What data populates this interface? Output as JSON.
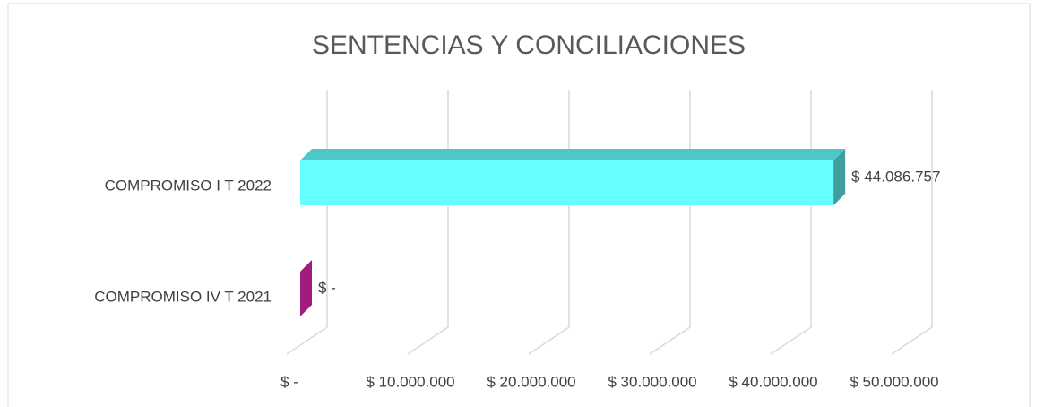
{
  "chart_data": {
    "type": "bar3d_horizontal",
    "title": "SENTENCIAS Y CONCILIACIONES",
    "categories": [
      "COMPROMISO IV T 2021",
      "COMPROMISO I T 2022"
    ],
    "values": [
      0,
      44086757
    ],
    "value_labels": [
      "$ -",
      "$ 44.086.757"
    ],
    "colors": [
      "#a01c7d",
      "#66ffff"
    ],
    "xlim": [
      0,
      50000000
    ],
    "xticks": [
      {
        "value": 0,
        "label": "$ -"
      },
      {
        "value": 10000000,
        "label": "$ 10.000.000"
      },
      {
        "value": 20000000,
        "label": "$ 20.000.000"
      },
      {
        "value": 30000000,
        "label": "$ 30.000.000"
      },
      {
        "value": 40000000,
        "label": "$ 40.000.000"
      },
      {
        "value": 50000000,
        "label": "$ 50.000.000"
      }
    ],
    "grid": true
  }
}
